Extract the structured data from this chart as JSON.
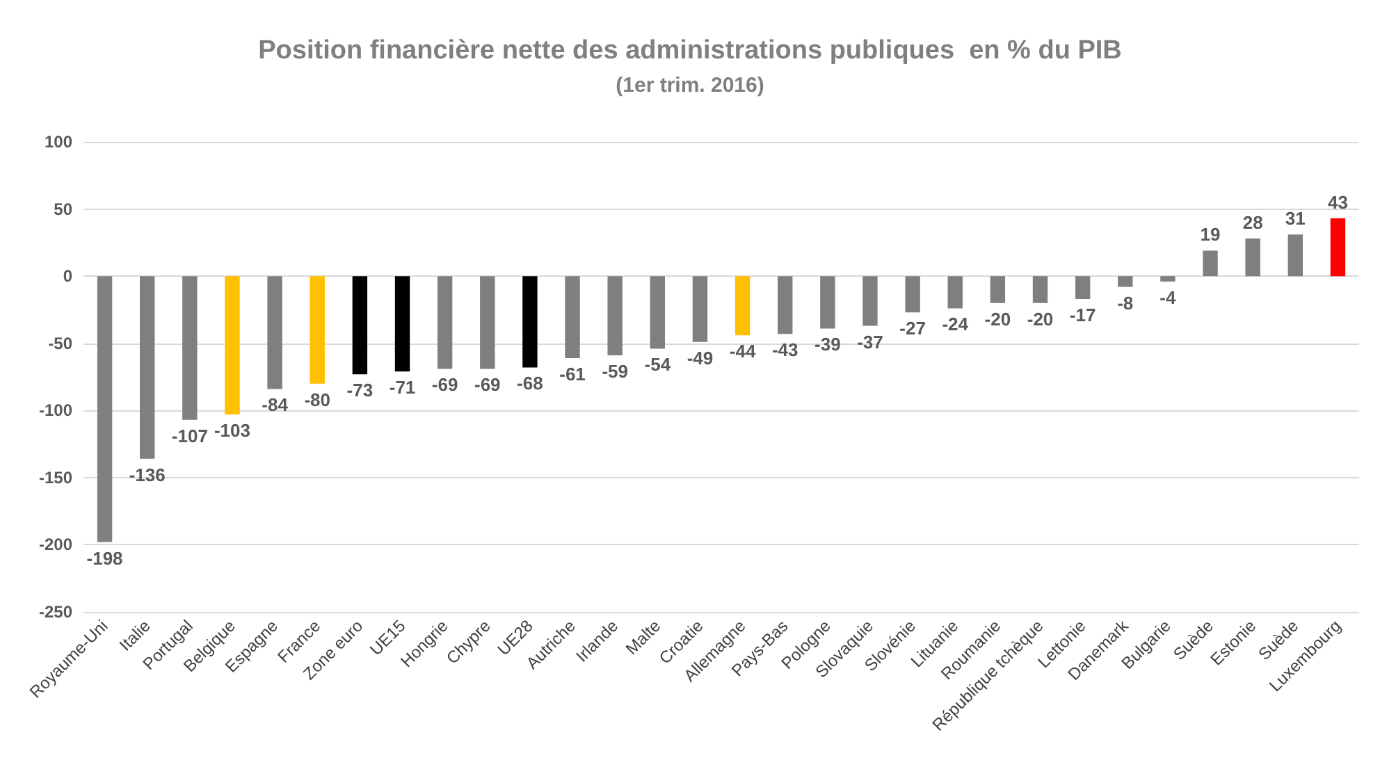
{
  "chart_data": {
    "type": "bar",
    "title": "Position financière nette des administrations publiques  en % du PIB",
    "subtitle": "(1er trim. 2016)",
    "categories": [
      "Royaume-Uni",
      "Italie",
      "Portugal",
      "Belgique",
      "Espagne",
      "France",
      "Zone euro",
      "UE15",
      "Hongrie",
      "Chypre",
      "UE28",
      "Autriche",
      "Irlande",
      "Malte",
      "Croatie",
      "Allemagne",
      "Pays-Bas",
      "Pologne",
      "Slovaquie",
      "Slovénie",
      "Lituanie",
      "Roumanie",
      "République tchèque",
      "Lettonie",
      "Danemark",
      "Bulgarie",
      "Suède",
      "Estonie",
      "Suède",
      "Luxembourg"
    ],
    "values": [
      -198,
      -136,
      -107,
      -103,
      -84,
      -80,
      -73,
      -71,
      -69,
      -69,
      -68,
      -61,
      -59,
      -54,
      -49,
      -44,
      -43,
      -39,
      -37,
      -27,
      -24,
      -20,
      -20,
      -17,
      -8,
      -4,
      19,
      28,
      31,
      43
    ],
    "colors": [
      "#7f7f7f",
      "#7f7f7f",
      "#7f7f7f",
      "#ffc000",
      "#7f7f7f",
      "#ffc000",
      "#000000",
      "#000000",
      "#7f7f7f",
      "#7f7f7f",
      "#000000",
      "#7f7f7f",
      "#7f7f7f",
      "#7f7f7f",
      "#7f7f7f",
      "#ffc000",
      "#7f7f7f",
      "#7f7f7f",
      "#7f7f7f",
      "#7f7f7f",
      "#7f7f7f",
      "#7f7f7f",
      "#7f7f7f",
      "#7f7f7f",
      "#7f7f7f",
      "#7f7f7f",
      "#7f7f7f",
      "#7f7f7f",
      "#7f7f7f",
      "#ff0000"
    ],
    "ylim": [
      -250,
      100
    ],
    "yticks": [
      -250,
      -200,
      -150,
      -100,
      -50,
      0,
      50,
      100
    ],
    "grid": "y",
    "data_labels": true
  }
}
